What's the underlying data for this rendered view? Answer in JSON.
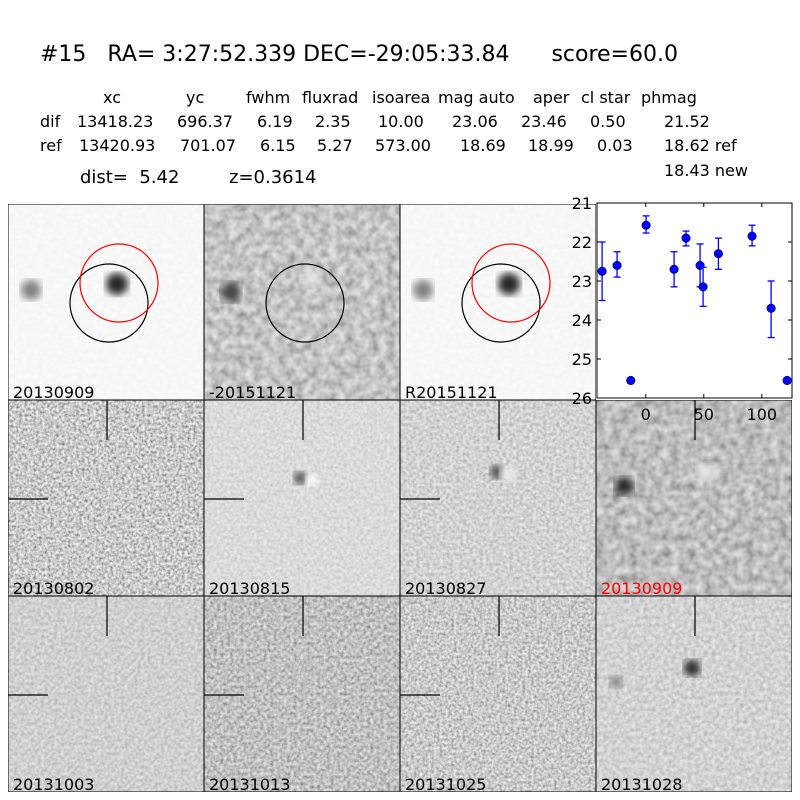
{
  "header": {
    "id": "#15",
    "ra": "RA= 3:27:52.339",
    "dec": "DEC=-29:05:33.84",
    "score": "score=60.0"
  },
  "table": {
    "columns": [
      "xc",
      "yc",
      "fwhm",
      "fluxrad",
      "isoarea",
      "mag auto",
      "aper",
      "cl star",
      "phmag"
    ],
    "rows": [
      {
        "label": "dif",
        "values": [
          "13418.23",
          "696.37",
          "6.19",
          "2.35",
          "10.00",
          "23.06",
          "23.46",
          "0.50",
          "21.52"
        ]
      },
      {
        "label": "ref",
        "values": [
          "13420.93",
          "701.07",
          "6.15",
          "5.27",
          "573.00",
          "18.69",
          "18.99",
          "0.03",
          "18.62 ref"
        ]
      }
    ],
    "extra_phmag": "18.43 new",
    "dist": "dist=  5.42",
    "z": "z=0.3614"
  },
  "panels": [
    {
      "label": "20130909",
      "color": "#000000"
    },
    {
      "label": "-20151121",
      "color": "#000000"
    },
    {
      "label": "R20151121",
      "color": "#000000"
    },
    {
      "label": "20130802",
      "color": "#000000"
    },
    {
      "label": "20130815",
      "color": "#000000"
    },
    {
      "label": "20130827",
      "color": "#000000"
    },
    {
      "label": "20130909",
      "color": "#ff0000"
    },
    {
      "label": "20131003",
      "color": "#000000"
    },
    {
      "label": "20131013",
      "color": "#000000"
    },
    {
      "label": "20131025",
      "color": "#000000"
    },
    {
      "label": "20131028",
      "color": "#000000"
    }
  ],
  "chart_data": {
    "type": "scatter",
    "title": "",
    "xlabel": "",
    "ylabel": "",
    "xlim": [
      -42,
      126
    ],
    "ylim": [
      26,
      21
    ],
    "y_inverted": true,
    "xticks": [
      "0",
      "50",
      "100"
    ],
    "xtick_values": [
      0,
      50,
      100
    ],
    "yticks": [
      "21",
      "22",
      "23",
      "24",
      "25",
      "26"
    ],
    "ytick_values": [
      21,
      22,
      23,
      24,
      25,
      26
    ],
    "marker_color": "#0000ff",
    "grid": false,
    "points": [
      {
        "x": -37.6,
        "y": 22.75,
        "lo": 22.0,
        "hi": 23.5
      },
      {
        "x": -24.7,
        "y": 22.6,
        "lo": 22.25,
        "hi": 22.9
      },
      {
        "x": -12.9,
        "y": 25.55,
        "lo": 25.5,
        "hi": 25.62
      },
      {
        "x": 0.3,
        "y": 21.57,
        "lo": 21.33,
        "hi": 21.77
      },
      {
        "x": 24.4,
        "y": 22.7,
        "lo": 22.25,
        "hi": 23.15
      },
      {
        "x": 34.7,
        "y": 21.9,
        "lo": 21.72,
        "hi": 22.1
      },
      {
        "x": 46.8,
        "y": 22.6,
        "lo": 22.05,
        "hi": 23.15
      },
      {
        "x": 49.4,
        "y": 23.15,
        "lo": 22.65,
        "hi": 23.65
      },
      {
        "x": 62.6,
        "y": 22.3,
        "lo": 21.9,
        "hi": 22.7
      },
      {
        "x": 91.6,
        "y": 21.85,
        "lo": 21.57,
        "hi": 22.1
      },
      {
        "x": 108.0,
        "y": 23.7,
        "lo": 23.0,
        "hi": 24.45
      },
      {
        "x": 121.8,
        "y": 25.55,
        "lo": 25.5,
        "hi": 25.62
      }
    ]
  }
}
